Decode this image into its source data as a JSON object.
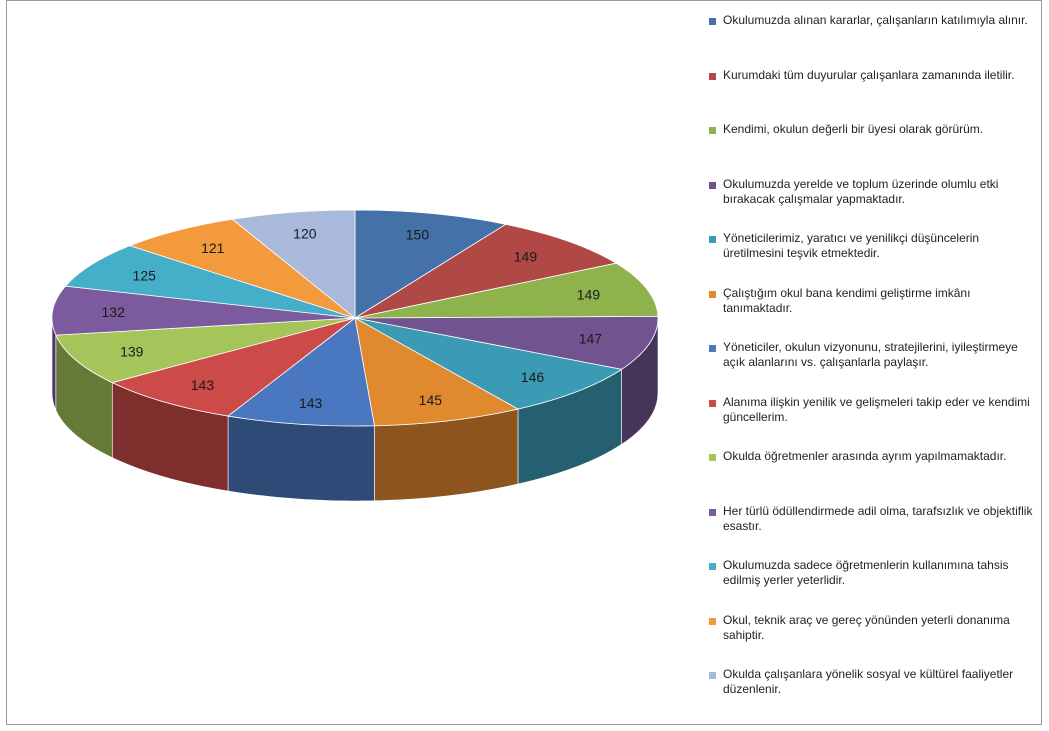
{
  "chart_data": {
    "type": "pie",
    "variant": "3d",
    "legend_position": "right",
    "slices": [
      {
        "label": "Okulumuzda alınan kararlar, çalışanların katılımıyla alınır.",
        "value": 150,
        "color": "#4472a8"
      },
      {
        "label": "Kurumdaki tüm duyurular çalışanlara zamanında iletilir.",
        "value": 149,
        "color": "#b04846"
      },
      {
        "label": "Kendimi, okulun değerli bir üyesi olarak görürüm.",
        "value": 149,
        "color": "#8fb34c"
      },
      {
        "label": "Okulumuzda yerelde ve toplum üzerinde olumlu etki bırakacak çalışmalar yapmaktadır.",
        "value": 147,
        "color": "#71548f"
      },
      {
        "label": "Yöneticilerimiz, yaratıcı ve yenilikçi düşüncelerin üretilmesini teşvik etmektedir.",
        "value": 146,
        "color": "#3b9bb4"
      },
      {
        "label": "Çalıştığım okul bana kendimi geliştirme imkânı tanımaktadır.",
        "value": 145,
        "color": "#e0892f"
      },
      {
        "label": "Yöneticiler, okulun vizyonunu, stratejilerini, iyileştirmeye açık alanlarını vs. çalışanlarla paylaşır.",
        "value": 143,
        "color": "#4a78c0"
      },
      {
        "label": "Alanıma ilişkin yenilik ve gelişmeleri takip eder ve kendimi güncellerim.",
        "value": 143,
        "color": "#cc4a47"
      },
      {
        "label": "Okulda öğretmenler arasında ayrım yapılmamaktadır.",
        "value": 139,
        "color": "#a5c55a"
      },
      {
        "label": "Her türlü ödüllendirmede adil olma, tarafsızlık ve objektiflik esastır.",
        "value": 132,
        "color": "#7b5a9e"
      },
      {
        "label": "Okulumuzda sadece öğretmenlerin kullanımına tahsis edilmiş yerler yeterlidir.",
        "value": 125,
        "color": "#45aec8"
      },
      {
        "label": "Okul, teknik araç ve gereç yönünden yeterli donanıma sahiptir.",
        "value": 121,
        "color": "#f39a3c"
      },
      {
        "label": "Okulda çalışanlara yönelik sosyal ve kültürel faaliyetler düzenlenir.",
        "value": 120,
        "color": "#a9b9dc"
      }
    ]
  }
}
